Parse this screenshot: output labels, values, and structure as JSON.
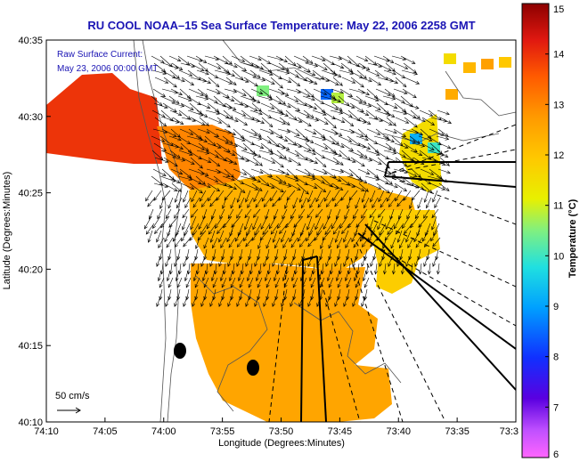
{
  "chart_data": {
    "type": "heatmap",
    "title": "RU COOL  NOAA–15  Sea Surface Temperature:  May 22, 2006 2258 GMT",
    "xlabel": "Longitude (Degrees:Minutes)",
    "ylabel": "Latitude (Degrees:Minutes)",
    "colorbar_label": "Temperature (°C)",
    "x_ticks": [
      "74:10",
      "74:05",
      "74:00",
      "73:55",
      "73:50",
      "73:45",
      "73:40",
      "73:35",
      "73:3"
    ],
    "y_ticks": [
      "40:35",
      "40:30",
      "40:25",
      "40:20",
      "40:15",
      "40:10"
    ],
    "colorbar_ticks": [
      "15",
      "14",
      "13",
      "12",
      "11",
      "10",
      "9",
      "8",
      "7",
      "6"
    ],
    "colorbar_range": [
      6,
      15
    ],
    "annotations": {
      "current_label": "Raw Surface Current:",
      "current_time": "May 23, 2006 00:00 GMT",
      "scale_label": "50 cm/s"
    },
    "temperature_regions": [
      {
        "region": "north-west",
        "value_c": 14.0
      },
      {
        "region": "raritan-bay",
        "value_c": 13.0
      },
      {
        "region": "central",
        "value_c": 12.3
      },
      {
        "region": "south",
        "value_c": 12.5
      },
      {
        "region": "east",
        "value_c": 11.8
      },
      {
        "region": "north-east",
        "value_c": 11.5
      }
    ]
  }
}
